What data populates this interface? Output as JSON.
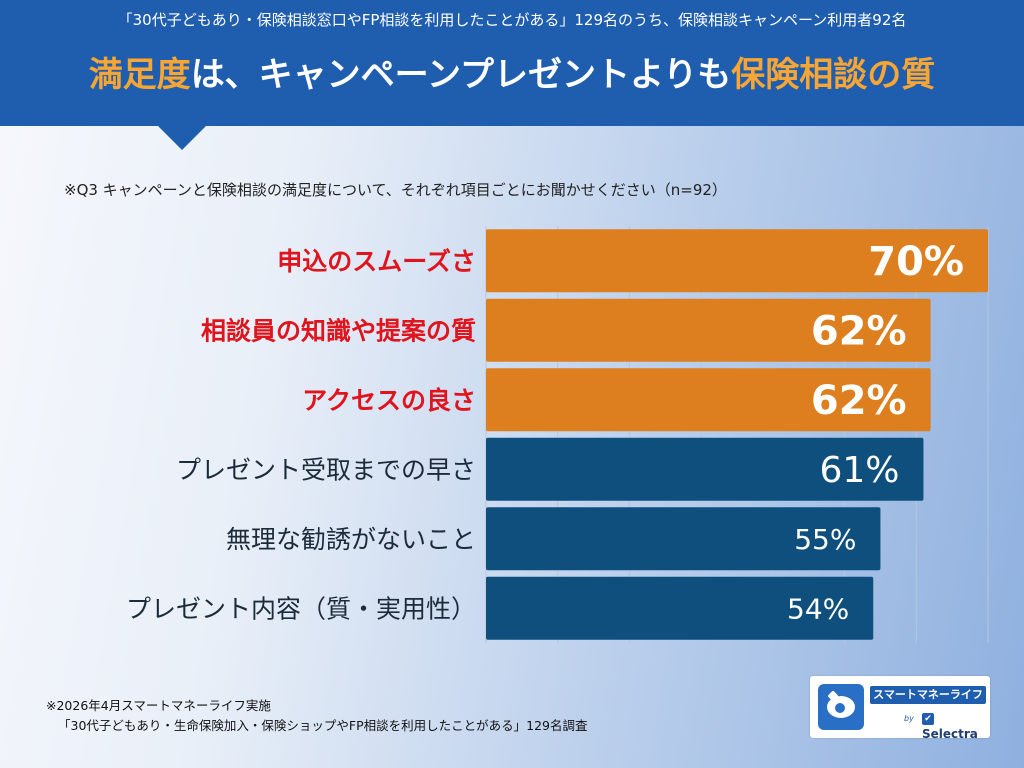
{
  "header": {
    "subtitle": "「30代子どもあり・保険相談窓口やFP相談を利用したことがある」129名のうち、保険相談キャンペーン利用者92名",
    "headline_part1": "満足度",
    "headline_part2": "は、キャンペーンプレゼントよりも",
    "headline_part3": "保険相談の質"
  },
  "question": "※Q3 キャンペーンと保険相談の満足度について、それぞれ項目ごとにお聞かせください（n=92）",
  "chart_data": {
    "type": "bar",
    "orientation": "horizontal",
    "categories": [
      "申込のスムーズさ",
      "相談員の知識や提案の質",
      "アクセスの良さ",
      "プレゼント受取までの早さ",
      "無理な勧誘がないこと",
      "プレゼント内容（質・実用性）"
    ],
    "values": [
      70,
      62,
      62,
      61,
      55,
      54
    ],
    "value_labels": [
      "70%",
      "62%",
      "62%",
      "61%",
      "55%",
      "54%"
    ],
    "highlighted": [
      true,
      true,
      true,
      false,
      false,
      false
    ],
    "colors": {
      "highlight_bar": "#dd7f1e",
      "normal_bar": "#0e4f7e",
      "highlight_label": "#e0141c",
      "normal_label": "#1c2b3a",
      "value_text": "#ffffff"
    },
    "xlim": [
      0,
      70
    ],
    "grid": true,
    "xlabel": "",
    "ylabel": ""
  },
  "footnote": {
    "line1": "※2026年4月スマートマネーライフ実施",
    "line2": "「30代子どもあり・生命保険加入・保険ショップやFP相談を利用したことがある」129名調査"
  },
  "logo": {
    "name": "スマートマネーライフ",
    "by": "by",
    "brand": "Selectra"
  }
}
